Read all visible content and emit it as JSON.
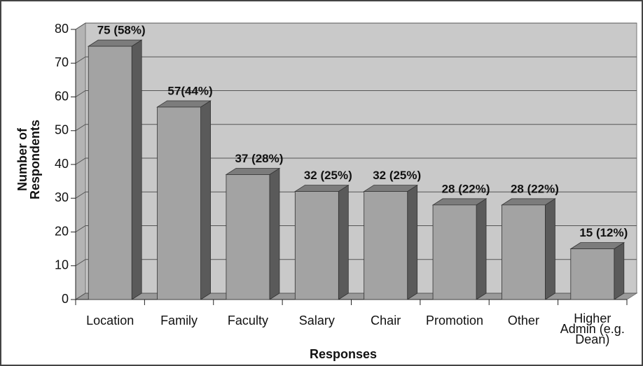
{
  "chart_data": {
    "type": "bar",
    "x_label": "Responses",
    "y_label": "Number of Respondents",
    "categories": [
      "Location",
      "Family",
      "Faculty",
      "Salary",
      "Chair",
      "Promotion",
      "Other",
      "Higher Admin (e.g. Dean)"
    ],
    "values": [
      75,
      57,
      37,
      32,
      32,
      28,
      28,
      15
    ],
    "value_labels": [
      "75 (58%)",
      "57(44%)",
      "37 (28%)",
      "32 (25%)",
      "32 (25%)",
      "28 (22%)",
      "28 (22%)",
      "15 (12%)"
    ],
    "color": "#a3a3a3",
    "ylim": [
      0,
      80
    ],
    "yticks": [
      0,
      10,
      20,
      30,
      40,
      50,
      60,
      70,
      80
    ],
    "grid": true
  }
}
